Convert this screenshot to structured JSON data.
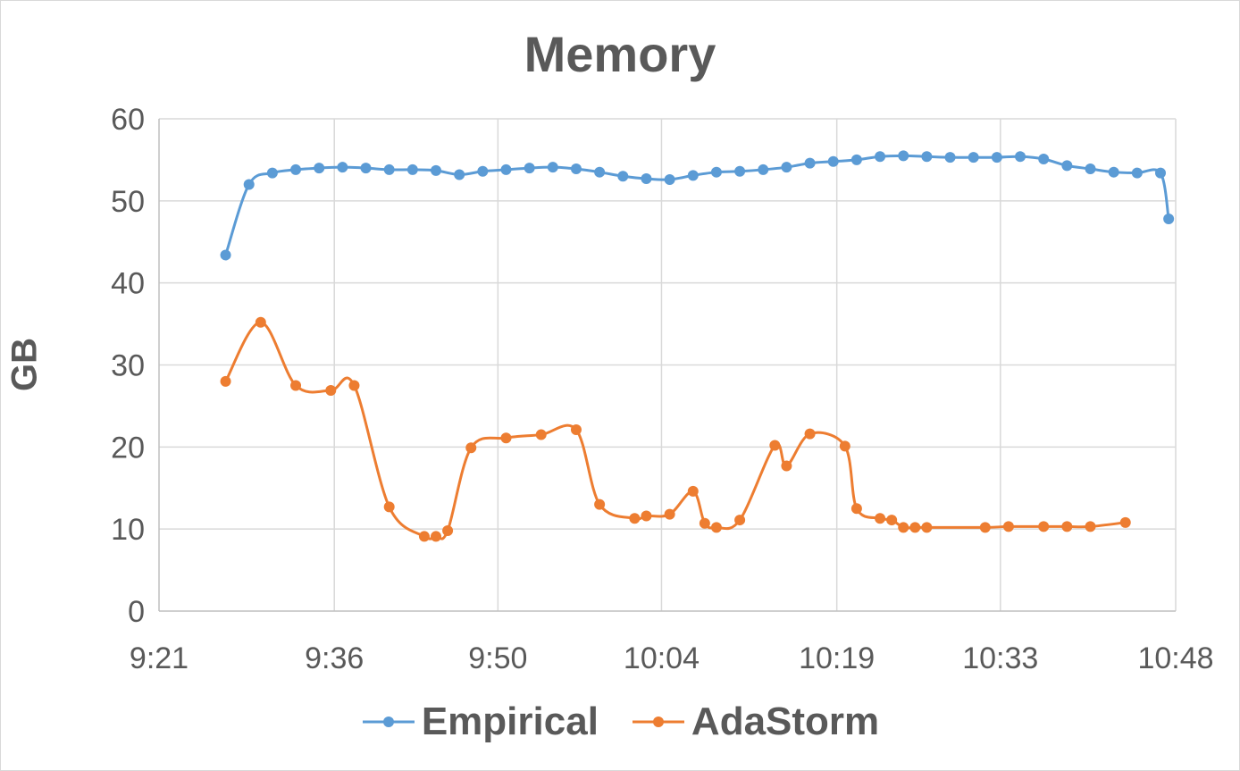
{
  "chart_data": {
    "type": "line",
    "title": "Memory",
    "xlabel": "",
    "ylabel": "GB",
    "xlim": [
      561,
      648
    ],
    "ylim": [
      0,
      60
    ],
    "yticks": [
      0,
      10,
      20,
      30,
      40,
      50,
      60
    ],
    "xticks": [
      {
        "value": 561,
        "label": "9:21"
      },
      {
        "value": 576,
        "label": "9:36"
      },
      {
        "value": 590,
        "label": "9:50"
      },
      {
        "value": 604,
        "label": "10:04"
      },
      {
        "value": 619,
        "label": "10:19"
      },
      {
        "value": 633,
        "label": "10:33"
      },
      {
        "value": 648,
        "label": "10:48"
      }
    ],
    "grid": true,
    "legend_position": "bottom",
    "series": [
      {
        "name": "Empirical",
        "color": "#5B9BD5",
        "x": [
          566.7,
          568.7,
          570.7,
          572.7,
          574.7,
          576.7,
          578.7,
          580.7,
          582.7,
          584.7,
          586.7,
          588.7,
          590.7,
          592.7,
          594.7,
          596.7,
          598.7,
          600.7,
          602.7,
          604.7,
          606.7,
          608.7,
          610.7,
          612.7,
          614.7,
          616.7,
          618.7,
          620.7,
          622.7,
          624.7,
          626.7,
          628.7,
          630.7,
          632.7,
          634.7,
          636.7,
          638.7,
          640.7,
          642.7,
          644.7,
          646.7,
          647.4
        ],
        "y": [
          43.4,
          52.0,
          53.4,
          53.8,
          54.0,
          54.1,
          54.0,
          53.8,
          53.8,
          53.7,
          53.2,
          53.6,
          53.8,
          54.0,
          54.1,
          53.9,
          53.5,
          53.0,
          52.7,
          52.6,
          53.1,
          53.5,
          53.6,
          53.8,
          54.1,
          54.6,
          54.8,
          55.0,
          55.4,
          55.5,
          55.4,
          55.3,
          55.3,
          55.3,
          55.4,
          55.1,
          54.3,
          53.9,
          53.5,
          53.4,
          53.4,
          47.8
        ]
      },
      {
        "name": "AdaStorm",
        "color": "#ED7D31",
        "x": [
          566.7,
          569.7,
          572.7,
          575.7,
          577.7,
          580.7,
          583.7,
          584.7,
          585.7,
          587.7,
          590.7,
          593.7,
          596.7,
          598.7,
          601.7,
          602.7,
          604.7,
          606.7,
          607.7,
          608.7,
          610.7,
          613.7,
          614.7,
          616.7,
          619.7,
          620.7,
          622.7,
          623.7,
          624.7,
          625.7,
          626.7,
          631.7,
          633.7,
          636.7,
          638.7,
          640.7,
          643.7
        ],
        "y": [
          28.0,
          35.2,
          27.5,
          26.9,
          27.5,
          12.7,
          9.1,
          9.1,
          9.8,
          19.9,
          21.1,
          21.5,
          22.1,
          13.0,
          11.3,
          11.6,
          11.8,
          14.6,
          10.7,
          10.2,
          11.1,
          20.2,
          17.7,
          21.6,
          20.1,
          12.5,
          11.3,
          11.1,
          10.2,
          10.2,
          10.2,
          10.2,
          10.3,
          10.3,
          10.3,
          10.3,
          10.8
        ]
      }
    ]
  }
}
